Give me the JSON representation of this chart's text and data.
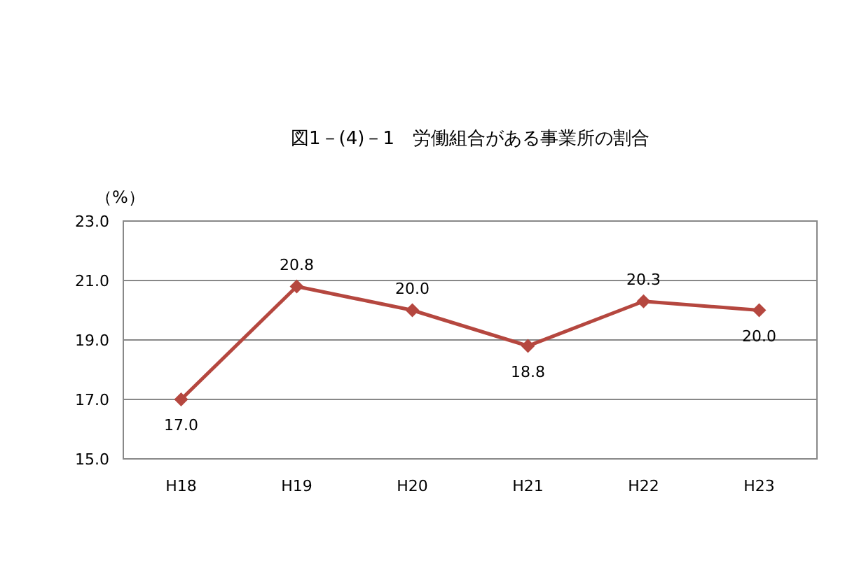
{
  "chart_data": {
    "type": "line",
    "title": "図1－(4)－1　労働組合がある事業所の割合",
    "ylabel": "（%）",
    "categories": [
      "H18",
      "H19",
      "H20",
      "H21",
      "H22",
      "H23"
    ],
    "series": [
      {
        "color": "#b5473f",
        "values": [
          17.0,
          20.8,
          20.0,
          18.8,
          20.3,
          20.0
        ],
        "value_labels": [
          "17.0",
          "20.8",
          "20.0",
          "18.8",
          "20.3",
          "20.0"
        ]
      }
    ],
    "ylim": [
      15,
      23
    ],
    "yticks": [
      {
        "value": 15,
        "label": "15.0"
      },
      {
        "value": 17,
        "label": "17.0"
      },
      {
        "value": 19,
        "label": "19.0"
      },
      {
        "value": 21,
        "label": "21.0"
      },
      {
        "value": 23,
        "label": "23.0"
      }
    ],
    "grid": "y",
    "marker": "diamond"
  }
}
